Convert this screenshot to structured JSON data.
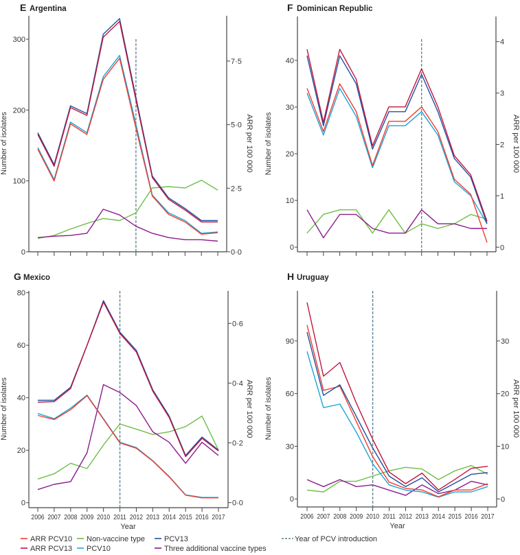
{
  "legend": {
    "items": [
      {
        "key": "arr_pcv10",
        "label": "ARR PCV10",
        "color": "#f03c2e"
      },
      {
        "key": "arr_pcv13",
        "label": "ARR PCV13",
        "color": "#c0143c"
      },
      {
        "key": "non_vaccine",
        "label": "Non-vaccine type",
        "color": "#6cbd45"
      },
      {
        "key": "pcv10",
        "label": "PCV10",
        "color": "#1ca3d8"
      },
      {
        "key": "pcv13",
        "label": "PCV13",
        "color": "#1f4fa0"
      },
      {
        "key": "three_additional",
        "label": "Three additional vaccine types",
        "color": "#8b1a8b"
      },
      {
        "key": "pcv_intro",
        "label": "Year of PCV introduction",
        "color": "#5a7f8f"
      }
    ]
  },
  "chart_data": [
    {
      "type": "line",
      "panel": "E",
      "title": "Argentina",
      "xlabel": "",
      "ylabel": "Number of isolates",
      "y2label": "ARR per 100 000",
      "x": [
        2006,
        2007,
        2008,
        2009,
        2010,
        2011,
        2012,
        2013,
        2014,
        2015,
        2016,
        2017
      ],
      "ylim": [
        0,
        333
      ],
      "y2lim": [
        0,
        9.28
      ],
      "yticks": [
        {
          "v": 0,
          "label": "0"
        },
        {
          "v": 100,
          "label": "100"
        },
        {
          "v": 200,
          "label": "200"
        },
        {
          "v": 300,
          "label": "300"
        }
      ],
      "y2ticks": [
        {
          "v": 0,
          "label": "0·0"
        },
        {
          "v": 2.5,
          "label": "2·5"
        },
        {
          "v": 5,
          "label": "5·0"
        },
        {
          "v": 7.5,
          "label": "7·5"
        }
      ],
      "pcv_intro_year": 2012,
      "series": [
        {
          "key": "non_vaccine",
          "axis": "left",
          "values": [
            19,
            23,
            32,
            40,
            47,
            44,
            55,
            90,
            92,
            90,
            101,
            87
          ]
        },
        {
          "key": "three_additional",
          "axis": "left",
          "values": [
            20,
            22,
            23,
            26,
            60,
            52,
            36,
            26,
            20,
            17,
            17,
            15
          ]
        },
        {
          "key": "pcv10",
          "axis": "left",
          "values": [
            147,
            102,
            183,
            168,
            247,
            277,
            180,
            80,
            55,
            44,
            26,
            28
          ]
        },
        {
          "key": "arr_pcv10",
          "axis": "right",
          "values": [
            4.03,
            2.78,
            5.03,
            4.61,
            6.78,
            7.61,
            4.86,
            2.19,
            1.47,
            1.17,
            0.69,
            0.75
          ]
        },
        {
          "key": "pcv13",
          "axis": "left",
          "values": [
            168,
            123,
            206,
            195,
            307,
            329,
            218,
            107,
            76,
            61,
            44,
            44
          ]
        },
        {
          "key": "arr_pcv13",
          "axis": "right",
          "values": [
            4.61,
            3.36,
            5.67,
            5.36,
            8.44,
            9.06,
            5.97,
            2.92,
            2.06,
            1.64,
            1.17,
            1.17
          ]
        }
      ]
    },
    {
      "type": "line",
      "panel": "F",
      "title": "Dominican Republic",
      "xlabel": "",
      "ylabel": "Number of isolates",
      "y2label": "ARR per 100 000",
      "x": [
        2006,
        2007,
        2008,
        2009,
        2010,
        2011,
        2012,
        2013,
        2014,
        2015,
        2016,
        2017
      ],
      "ylim": [
        -1,
        49.4
      ],
      "y2lim": [
        -0.09,
        4.49
      ],
      "yticks": [
        {
          "v": 0,
          "label": "0"
        },
        {
          "v": 10,
          "label": "10"
        },
        {
          "v": 20,
          "label": "20"
        },
        {
          "v": 30,
          "label": "30"
        },
        {
          "v": 40,
          "label": "40"
        }
      ],
      "y2ticks": [
        {
          "v": 0,
          "label": "0"
        },
        {
          "v": 1,
          "label": "1"
        },
        {
          "v": 2,
          "label": "2"
        },
        {
          "v": 3,
          "label": "3"
        },
        {
          "v": 4,
          "label": "4"
        }
      ],
      "pcv_intro_year": 2013,
      "series": [
        {
          "key": "non_vaccine",
          "axis": "left",
          "values": [
            3,
            7,
            8,
            8,
            3,
            8,
            3,
            5,
            4,
            5,
            7,
            6
          ]
        },
        {
          "key": "three_additional",
          "axis": "left",
          "values": [
            8,
            2,
            7,
            7,
            4,
            3,
            3,
            8,
            5,
            5,
            4,
            4
          ]
        },
        {
          "key": "pcv10",
          "axis": "left",
          "values": [
            33,
            24,
            34,
            28,
            17,
            26,
            26,
            29,
            24,
            14,
            11,
            5
          ]
        },
        {
          "key": "arr_pcv10",
          "axis": "right",
          "values": [
            3.09,
            2.25,
            3.18,
            2.64,
            1.59,
            2.45,
            2.45,
            2.73,
            2.25,
            1.32,
            1.03,
            0.09
          ]
        },
        {
          "key": "pcv13",
          "axis": "left",
          "values": [
            41,
            26,
            41,
            35,
            21,
            29,
            29,
            37,
            29,
            19,
            15,
            5
          ]
        },
        {
          "key": "arr_pcv13",
          "axis": "right",
          "values": [
            3.85,
            2.43,
            3.85,
            3.27,
            1.97,
            2.73,
            2.73,
            3.47,
            2.73,
            1.78,
            1.41,
            0.5
          ]
        }
      ]
    },
    {
      "type": "line",
      "panel": "G",
      "title": "Mexico",
      "xlabel": "Year",
      "ylabel": "Number of isolates",
      "y2label": "ARR per 100 000",
      "x": [
        2006,
        2007,
        2008,
        2009,
        2010,
        2011,
        2012,
        2013,
        2014,
        2015,
        2016,
        2017
      ],
      "ylim": [
        -1.9,
        80.7
      ],
      "y2lim": [
        -0.0168,
        0.7086
      ],
      "yticks": [
        {
          "v": 0,
          "label": "0"
        },
        {
          "v": 20,
          "label": "20"
        },
        {
          "v": 40,
          "label": "40"
        },
        {
          "v": 60,
          "label": "60"
        },
        {
          "v": 80,
          "label": "80"
        }
      ],
      "y2ticks": [
        {
          "v": 0,
          "label": "0·0"
        },
        {
          "v": 0.2,
          "label": "0·2"
        },
        {
          "v": 0.4,
          "label": "0·4"
        },
        {
          "v": 0.6,
          "label": "0·6"
        }
      ],
      "pcv_intro_year": 2011,
      "series": [
        {
          "key": "non_vaccine",
          "axis": "left",
          "values": [
            9,
            11,
            15,
            13,
            22,
            30,
            28,
            26,
            27,
            29,
            33,
            20
          ]
        },
        {
          "key": "three_additional",
          "axis": "left",
          "values": [
            5,
            7,
            8,
            19,
            45,
            42,
            37,
            27,
            23,
            15,
            23,
            18
          ]
        },
        {
          "key": "pcv10",
          "axis": "left",
          "values": [
            34,
            32,
            36,
            41,
            32,
            23,
            21,
            16,
            10,
            3,
            2,
            2
          ]
        },
        {
          "key": "arr_pcv10",
          "axis": "right",
          "values": [
            0.292,
            0.278,
            0.311,
            0.358,
            0.279,
            0.2,
            0.182,
            0.139,
            0.086,
            0.025,
            0.016,
            0.016
          ]
        },
        {
          "key": "pcv13",
          "axis": "left",
          "values": [
            39,
            39,
            44,
            60,
            77,
            65,
            58,
            43,
            33,
            18,
            25,
            20
          ]
        },
        {
          "key": "arr_pcv13",
          "axis": "right",
          "values": [
            0.336,
            0.338,
            0.382,
            0.526,
            0.671,
            0.566,
            0.504,
            0.373,
            0.285,
            0.154,
            0.215,
            0.173
          ]
        }
      ]
    },
    {
      "type": "line",
      "panel": "H",
      "title": "Uruguay",
      "xlabel": "Year",
      "ylabel": "Number of isolates",
      "y2label": "ARR per 100 000",
      "x": [
        2006,
        2007,
        2008,
        2009,
        2010,
        2011,
        2012,
        2013,
        2014,
        2015,
        2016,
        2017
      ],
      "ylim": [
        -4.6,
        118.5
      ],
      "y2lim": [
        -1.53,
        39.5
      ],
      "yticks": [
        {
          "v": 0,
          "label": "0"
        },
        {
          "v": 30,
          "label": "30"
        },
        {
          "v": 60,
          "label": "60"
        },
        {
          "v": 90,
          "label": "90"
        }
      ],
      "y2ticks": [
        {
          "v": 0,
          "label": "0"
        },
        {
          "v": 10,
          "label": "10"
        },
        {
          "v": 20,
          "label": "20"
        },
        {
          "v": 30,
          "label": "30"
        }
      ],
      "pcv_intro_year": 2010,
      "series": [
        {
          "key": "non_vaccine",
          "axis": "left",
          "values": [
            5,
            4,
            10,
            10,
            13,
            16,
            18,
            17,
            11,
            16,
            19,
            14
          ]
        },
        {
          "key": "three_additional",
          "axis": "left",
          "values": [
            11,
            7,
            11,
            7,
            8,
            5,
            2,
            8,
            3,
            5,
            10,
            8
          ]
        },
        {
          "key": "pcv10",
          "axis": "left",
          "values": [
            84,
            52,
            54,
            38,
            20,
            8,
            5,
            4,
            1,
            4,
            4,
            7
          ]
        },
        {
          "key": "arr_pcv10",
          "axis": "right",
          "values": [
            33,
            20.6,
            21.4,
            14.7,
            8,
            3.2,
            2,
            1.7,
            0.4,
            1.7,
            1.7,
            2.9
          ]
        },
        {
          "key": "pcv13",
          "axis": "left",
          "values": [
            95,
            59,
            65,
            47,
            29,
            13,
            7,
            12,
            4,
            9,
            14,
            15
          ]
        },
        {
          "key": "arr_pcv13",
          "axis": "right",
          "values": [
            37.3,
            23.3,
            25.9,
            18.2,
            11.3,
            5.1,
            2.9,
            4.9,
            1.7,
            3.7,
            5.8,
            6.2
          ]
        }
      ]
    }
  ]
}
